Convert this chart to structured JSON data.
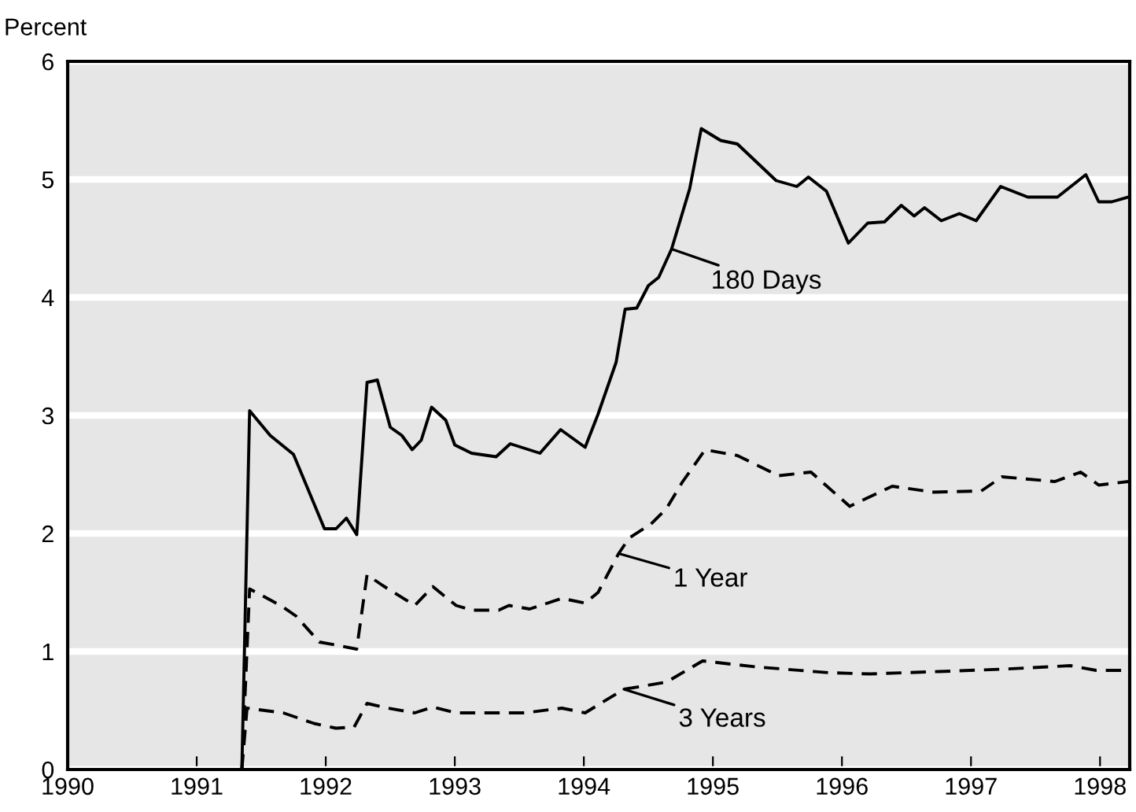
{
  "chart_data": {
    "type": "line",
    "ylabel": "Percent",
    "xlim": [
      1990,
      1998.23
    ],
    "ylim": [
      0,
      6
    ],
    "xticks": [
      1990,
      1991,
      1992,
      1993,
      1994,
      1995,
      1996,
      1997,
      1998
    ],
    "yticks": [
      0,
      1,
      2,
      3,
      4,
      5,
      6
    ],
    "grid": "y",
    "legend": false,
    "series": [
      {
        "color": "#000000",
        "line_style": "solid",
        "x": [
          1991.35,
          1991.41,
          1991.57,
          1991.75,
          1991.99,
          1992.08,
          1992.16,
          1992.24,
          1992.32,
          1992.4,
          1992.5,
          1992.59,
          1992.67,
          1992.74,
          1992.82,
          1992.93,
          1993.0,
          1993.13,
          1993.32,
          1993.43,
          1993.66,
          1993.82,
          1994.01,
          1994.11,
          1994.25,
          1994.32,
          1994.41,
          1994.5,
          1994.58,
          1994.68,
          1994.82,
          1994.91,
          1995.06,
          1995.19,
          1995.49,
          1995.65,
          1995.74,
          1995.88,
          1996.05,
          1996.2,
          1996.33,
          1996.46,
          1996.56,
          1996.64,
          1996.77,
          1996.91,
          1997.04,
          1997.23,
          1997.44,
          1997.67,
          1997.89,
          1997.99,
          1998.09,
          1998.22
        ],
        "values": [
          0,
          3.04,
          2.83,
          2.67,
          2.04,
          2.04,
          2.13,
          1.99,
          3.28,
          3.3,
          2.9,
          2.83,
          2.71,
          2.79,
          3.07,
          2.96,
          2.75,
          2.68,
          2.65,
          2.76,
          2.68,
          2.88,
          2.73,
          3.01,
          3.45,
          3.9,
          3.91,
          4.1,
          4.17,
          4.41,
          4.92,
          5.43,
          5.33,
          5.3,
          4.99,
          4.94,
          5.02,
          4.9,
          4.46,
          4.63,
          4.64,
          4.78,
          4.69,
          4.76,
          4.65,
          4.71,
          4.65,
          4.94,
          4.85,
          4.85,
          5.04,
          4.81,
          4.81,
          4.85
        ]
      },
      {
        "color": "#000000",
        "line_style": "dashed",
        "x": [
          1991.35,
          1991.41,
          1991.65,
          1991.77,
          1991.95,
          1992.1,
          1992.24,
          1992.32,
          1992.44,
          1992.69,
          1992.83,
          1993.01,
          1993.13,
          1993.34,
          1993.42,
          1993.58,
          1993.83,
          1994.01,
          1994.11,
          1994.27,
          1994.35,
          1994.52,
          1994.64,
          1994.76,
          1994.94,
          1995.19,
          1995.51,
          1995.76,
          1996.06,
          1996.39,
          1996.71,
          1997.08,
          1997.24,
          1997.65,
          1997.85,
          1997.99,
          1998.22
        ],
        "values": [
          0,
          1.53,
          1.39,
          1.3,
          1.08,
          1.05,
          1.02,
          1.65,
          1.56,
          1.39,
          1.55,
          1.39,
          1.35,
          1.35,
          1.39,
          1.36,
          1.45,
          1.41,
          1.5,
          1.83,
          1.96,
          2.08,
          2.21,
          2.43,
          2.71,
          2.66,
          2.49,
          2.52,
          2.23,
          2.4,
          2.35,
          2.36,
          2.48,
          2.44,
          2.52,
          2.41,
          2.44
        ]
      },
      {
        "color": "#000000",
        "line_style": "dashed",
        "x": [
          1991.35,
          1991.39,
          1991.67,
          1991.91,
          1992.08,
          1992.22,
          1992.32,
          1992.48,
          1992.69,
          1992.83,
          1993.01,
          1993.54,
          1993.83,
          1994.01,
          1994.31,
          1994.64,
          1994.92,
          1995.33,
          1995.9,
          1996.22,
          1996.75,
          1997.24,
          1997.77,
          1997.97,
          1998.22
        ],
        "values": [
          0,
          0.52,
          0.48,
          0.39,
          0.35,
          0.36,
          0.56,
          0.52,
          0.48,
          0.53,
          0.48,
          0.48,
          0.52,
          0.48,
          0.68,
          0.74,
          0.92,
          0.87,
          0.82,
          0.81,
          0.83,
          0.85,
          0.88,
          0.84,
          0.84
        ]
      }
    ],
    "annotations": [
      {
        "text": "180 Days",
        "x": 1994.68,
        "y": 4.41
      },
      {
        "text": "1 Year",
        "x": 1994.27,
        "y": 1.83
      },
      {
        "text": "3 Years",
        "x": 1994.31,
        "y": 0.68
      }
    ]
  }
}
